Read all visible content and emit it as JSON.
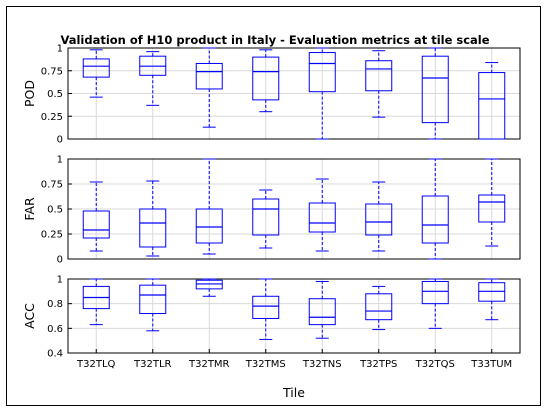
{
  "title": "Validation of H10 product in Italy - Evaluation metrics at tile scale",
  "xlabel": "Tile",
  "colors": {
    "box": "#0000ff",
    "axis": "#000000",
    "grid": "#d9d9d9"
  },
  "chart_data": {
    "type": "box",
    "categories": [
      "T32TLQ",
      "T32TLR",
      "T32TMR",
      "T32TMS",
      "T32TNS",
      "T32TPS",
      "T32TQS",
      "T33TUM"
    ],
    "panels": [
      {
        "ylabel": "POD",
        "ylim": [
          0,
          1
        ],
        "yticks": [
          "0",
          "0.25",
          "0.5",
          "0.75",
          "1"
        ],
        "ytick_values": [
          0,
          0.25,
          0.5,
          0.75,
          1
        ],
        "grid": true,
        "boxes": [
          {
            "min": 0.46,
            "q1": 0.68,
            "median": 0.8,
            "q3": 0.88,
            "max": 0.98
          },
          {
            "min": 0.37,
            "q1": 0.7,
            "median": 0.8,
            "q3": 0.91,
            "max": 0.96
          },
          {
            "min": 0.13,
            "q1": 0.55,
            "median": 0.74,
            "q3": 0.83,
            "max": 1.0
          },
          {
            "min": 0.3,
            "q1": 0.43,
            "median": 0.74,
            "q3": 0.9,
            "max": 0.98
          },
          {
            "min": 0.0,
            "q1": 0.52,
            "median": 0.83,
            "q3": 0.95,
            "max": 1.0
          },
          {
            "min": 0.24,
            "q1": 0.53,
            "median": 0.77,
            "q3": 0.86,
            "max": 0.97
          },
          {
            "min": 0.0,
            "q1": 0.18,
            "median": 0.67,
            "q3": 0.91,
            "max": 1.0
          },
          {
            "min": 0.0,
            "q1": 0.0,
            "median": 0.44,
            "q3": 0.73,
            "max": 0.84
          }
        ]
      },
      {
        "ylabel": "FAR",
        "ylim": [
          0,
          1
        ],
        "yticks": [
          "0",
          "0.25",
          "0.5",
          "0.75",
          "1"
        ],
        "ytick_values": [
          0,
          0.25,
          0.5,
          0.75,
          1
        ],
        "grid": true,
        "boxes": [
          {
            "min": 0.08,
            "q1": 0.21,
            "median": 0.29,
            "q3": 0.48,
            "max": 0.77
          },
          {
            "min": 0.03,
            "q1": 0.12,
            "median": 0.36,
            "q3": 0.5,
            "max": 0.78
          },
          {
            "min": 0.05,
            "q1": 0.16,
            "median": 0.32,
            "q3": 0.5,
            "max": 1.0
          },
          {
            "min": 0.11,
            "q1": 0.24,
            "median": 0.5,
            "q3": 0.6,
            "max": 0.69
          },
          {
            "min": 0.08,
            "q1": 0.27,
            "median": 0.36,
            "q3": 0.56,
            "max": 0.8
          },
          {
            "min": 0.08,
            "q1": 0.24,
            "median": 0.37,
            "q3": 0.55,
            "max": 0.77
          },
          {
            "min": 0.0,
            "q1": 0.16,
            "median": 0.34,
            "q3": 0.63,
            "max": 1.0
          },
          {
            "min": 0.13,
            "q1": 0.37,
            "median": 0.57,
            "q3": 0.64,
            "max": 1.0
          }
        ]
      },
      {
        "ylabel": "ACC",
        "ylim": [
          0.4,
          1
        ],
        "yticks": [
          "0.4",
          "0.6",
          "0.8",
          "1"
        ],
        "ytick_values": [
          0.4,
          0.6,
          0.8,
          1
        ],
        "grid": true,
        "boxes": [
          {
            "min": 0.63,
            "q1": 0.76,
            "median": 0.85,
            "q3": 0.94,
            "max": 1.0
          },
          {
            "min": 0.58,
            "q1": 0.72,
            "median": 0.87,
            "q3": 0.95,
            "max": 1.0
          },
          {
            "min": 0.86,
            "q1": 0.92,
            "median": 0.96,
            "q3": 0.99,
            "max": 1.0
          },
          {
            "min": 0.51,
            "q1": 0.68,
            "median": 0.78,
            "q3": 0.86,
            "max": 1.0
          },
          {
            "min": 0.52,
            "q1": 0.63,
            "median": 0.69,
            "q3": 0.84,
            "max": 0.98
          },
          {
            "min": 0.59,
            "q1": 0.67,
            "median": 0.74,
            "q3": 0.88,
            "max": 0.94
          },
          {
            "min": 0.6,
            "q1": 0.8,
            "median": 0.9,
            "q3": 0.98,
            "max": 1.0
          },
          {
            "min": 0.67,
            "q1": 0.82,
            "median": 0.9,
            "q3": 0.97,
            "max": 1.0
          }
        ]
      }
    ]
  }
}
